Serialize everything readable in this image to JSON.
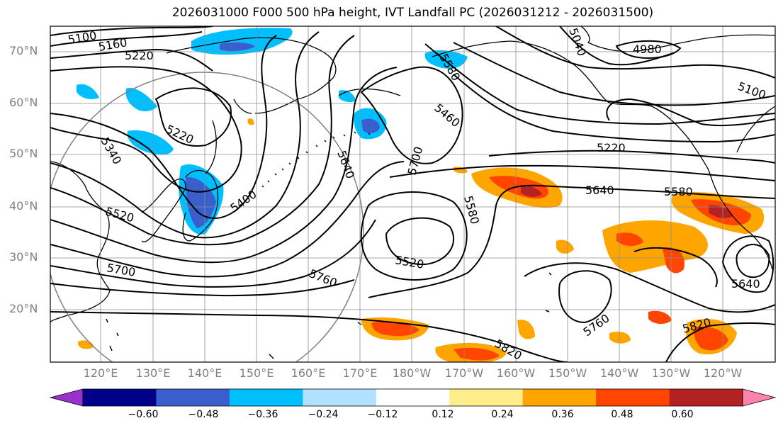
{
  "title": "2026031000 F000 500 hPa height, IVT Landfall PC (2026031212 - 2026031500)",
  "lat_labels": [
    "70°N",
    "60°N",
    "50°N",
    "40°N",
    "30°N",
    "20°N"
  ],
  "lon_labels": [
    "120°E",
    "130°E",
    "140°E",
    "150°E",
    "160°E",
    "170°E",
    "180°W",
    "170°W",
    "160°W",
    "150°W",
    "140°W",
    "130°W",
    "120°W"
  ],
  "contour_labels": [
    "5100",
    "5160",
    "5220",
    "5220",
    "5340",
    "5520",
    "5400",
    "5700",
    "5760",
    "5640",
    "5700",
    "5460",
    "5580",
    "5520",
    "5580",
    "5640",
    "5220",
    "5040",
    "4980",
    "5100",
    "5580",
    "5640",
    "5760",
    "5820",
    "5820"
  ],
  "colorbar": {
    "ticks": [
      "−0.60",
      "−0.48",
      "−0.36",
      "−0.24",
      "−0.12",
      "0.12",
      "0.24",
      "0.36",
      "0.48",
      "0.60"
    ],
    "colors": [
      "#9932cc",
      "#00008b",
      "#3a5fcd",
      "#00bfff",
      "#b0e2ff",
      "#ffffff",
      "#ffec8b",
      "#ffa500",
      "#ff4500",
      "#b22222",
      "#ff82ab"
    ]
  }
}
